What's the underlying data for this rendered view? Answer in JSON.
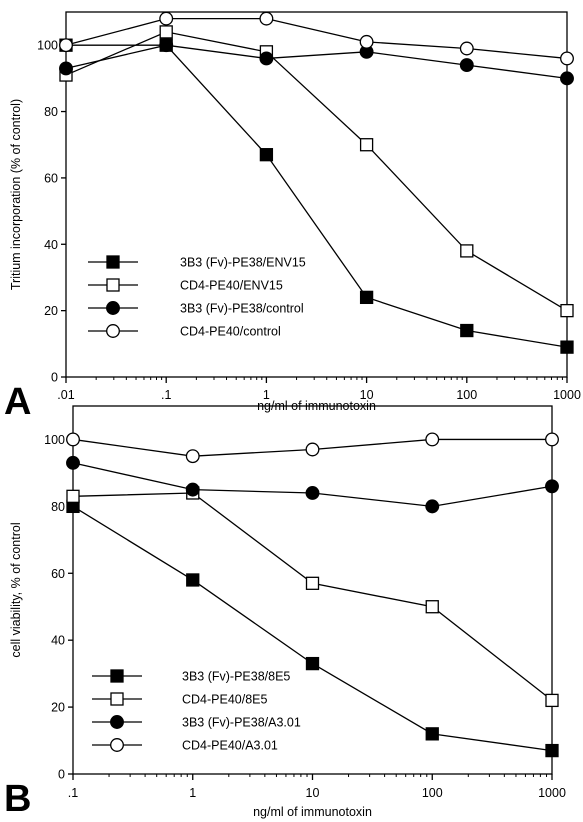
{
  "chart_data": [
    {
      "type": "line",
      "panel_label": "A",
      "title": "",
      "xlabel": "ng/ml of immunotoxin",
      "ylabel": "Tritium incorporation (% of control)",
      "x_scale": "log",
      "xlim": [
        0.01,
        1000
      ],
      "ylim": [
        0,
        110
      ],
      "x_ticks": [
        0.01,
        0.1,
        1,
        10,
        100,
        1000
      ],
      "x_tick_labels": [
        ".01",
        ".1",
        "1",
        "10",
        "100",
        "1000"
      ],
      "y_ticks": [
        0,
        20,
        40,
        60,
        80,
        100
      ],
      "y_tick_labels": [
        "0",
        "20",
        "40",
        "60",
        "80",
        "100"
      ],
      "grid": false,
      "legend_position": "bottom-left",
      "x": [
        0.01,
        0.1,
        1,
        10,
        100,
        1000
      ],
      "series": [
        {
          "name": "3B3 (Fv)-PE38/ENV15",
          "marker": "filled-square",
          "values": [
            100,
            100,
            67,
            24,
            14,
            9
          ]
        },
        {
          "name": "CD4-PE40/ENV15",
          "marker": "open-square",
          "values": [
            91,
            104,
            98,
            70,
            38,
            20
          ]
        },
        {
          "name": "3B3 (Fv)-PE38/control",
          "marker": "filled-circle",
          "values": [
            93,
            100,
            96,
            98,
            94,
            90
          ]
        },
        {
          "name": "CD4-PE40/control",
          "marker": "open-circle",
          "values": [
            100,
            108,
            108,
            101,
            99,
            96
          ]
        }
      ]
    },
    {
      "type": "line",
      "panel_label": "B",
      "title": "",
      "xlabel": "ng/ml of immunotoxin",
      "ylabel": "cell viability, % of control",
      "x_scale": "log",
      "xlim": [
        0.1,
        1000
      ],
      "ylim": [
        0,
        110
      ],
      "x_ticks": [
        0.1,
        1,
        10,
        100,
        1000
      ],
      "x_tick_labels": [
        ".1",
        "1",
        "10",
        "100",
        "1000"
      ],
      "y_ticks": [
        0,
        20,
        40,
        60,
        80,
        100
      ],
      "y_tick_labels": [
        "0",
        "20",
        "40",
        "60",
        "80",
        "100"
      ],
      "grid": false,
      "legend_position": "bottom-left",
      "x": [
        0.1,
        1,
        10,
        100,
        1000
      ],
      "series": [
        {
          "name": "3B3 (Fv)-PE38/8E5",
          "marker": "filled-square",
          "values": [
            80,
            58,
            33,
            12,
            7
          ]
        },
        {
          "name": "CD4-PE40/8E5",
          "marker": "open-square",
          "values": [
            83,
            84,
            57,
            50,
            22
          ]
        },
        {
          "name": "3B3 (Fv)-PE38/A3.01",
          "marker": "filled-circle",
          "values": [
            93,
            85,
            84,
            80,
            86
          ]
        },
        {
          "name": "CD4-PE40/A3.01",
          "marker": "open-circle",
          "values": [
            100,
            95,
            97,
            100,
            100
          ]
        }
      ]
    }
  ]
}
